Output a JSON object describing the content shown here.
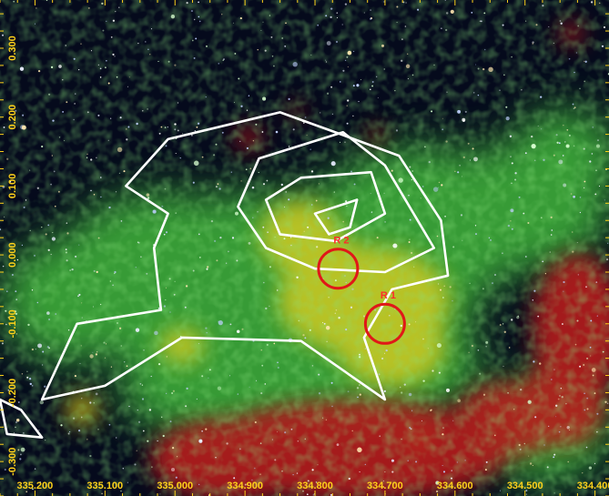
{
  "image": {
    "kind": "false-color infrared sky map",
    "x_axis": {
      "quantity": "galactic longitude",
      "unit": "deg",
      "range": [
        335.25,
        334.38
      ],
      "ticks": [
        "335.200",
        "335.100",
        "335.000",
        "334.900",
        "334.800",
        "334.700",
        "334.600",
        "334.500",
        "334.400"
      ]
    },
    "y_axis": {
      "quantity": "galactic latitude",
      "unit": "deg",
      "range": [
        -0.35,
        0.37
      ],
      "ticks": [
        "0.300",
        "0.200",
        "0.100",
        "0.000",
        "-0.100",
        "-0.200",
        "-0.300"
      ]
    },
    "regions": [
      {
        "label": "R 2",
        "l": 334.767,
        "b": -0.02,
        "radius_deg": 0.028,
        "color": "#e01818"
      },
      {
        "label": "R 1",
        "l": 334.7,
        "b": -0.1,
        "radius_deg": 0.028,
        "color": "#e01818"
      }
    ],
    "contours": {
      "color": "#ffffff",
      "levels": [
        {
          "id": "outer",
          "lb": [
            [
              335.01,
              0.168
            ],
            [
              334.85,
              0.207
            ],
            [
              334.76,
              0.174
            ],
            [
              334.68,
              0.144
            ],
            [
              334.62,
              0.05
            ],
            [
              334.61,
              -0.03
            ],
            [
              334.69,
              -0.05
            ],
            [
              334.73,
              -0.12
            ],
            [
              334.7,
              -0.21
            ],
            [
              334.82,
              -0.125
            ],
            [
              334.99,
              -0.12
            ],
            [
              335.1,
              -0.19
            ],
            [
              335.19,
              -0.21
            ],
            [
              335.14,
              -0.1
            ],
            [
              335.02,
              -0.08
            ],
            [
              335.03,
              0.01
            ],
            [
              335.01,
              0.06
            ],
            [
              335.07,
              0.1
            ]
          ]
        },
        {
          "id": "middle",
          "lb": [
            [
              334.88,
              0.14
            ],
            [
              334.76,
              0.178
            ],
            [
              334.7,
              0.13
            ],
            [
              334.63,
              0.01
            ],
            [
              334.7,
              -0.025
            ],
            [
              334.8,
              -0.02
            ],
            [
              334.87,
              0.01
            ],
            [
              334.91,
              0.07
            ]
          ]
        },
        {
          "id": "inner",
          "lb": [
            [
              334.87,
              0.08
            ],
            [
              334.82,
              0.112
            ],
            [
              334.72,
              0.12
            ],
            [
              334.7,
              0.06
            ],
            [
              334.77,
              0.02
            ],
            [
              334.85,
              0.03
            ]
          ]
        },
        {
          "id": "core",
          "lb": [
            [
              334.8,
              0.06
            ],
            [
              334.74,
              0.08
            ],
            [
              334.75,
              0.04
            ],
            [
              334.78,
              0.03
            ]
          ]
        },
        {
          "id": "isolated-lower-left",
          "lb": [
            [
              335.25,
              -0.21
            ],
            [
              335.22,
              -0.225
            ],
            [
              335.19,
              -0.265
            ],
            [
              335.24,
              -0.26
            ]
          ]
        }
      ]
    },
    "emission_layers": {
      "diffuse_green": "#3fb53a",
      "warm_yellow": "#d7cc23",
      "red_nebula": "#b61a1a",
      "star_field": "#e8ecff",
      "background": "#050a1c"
    }
  }
}
